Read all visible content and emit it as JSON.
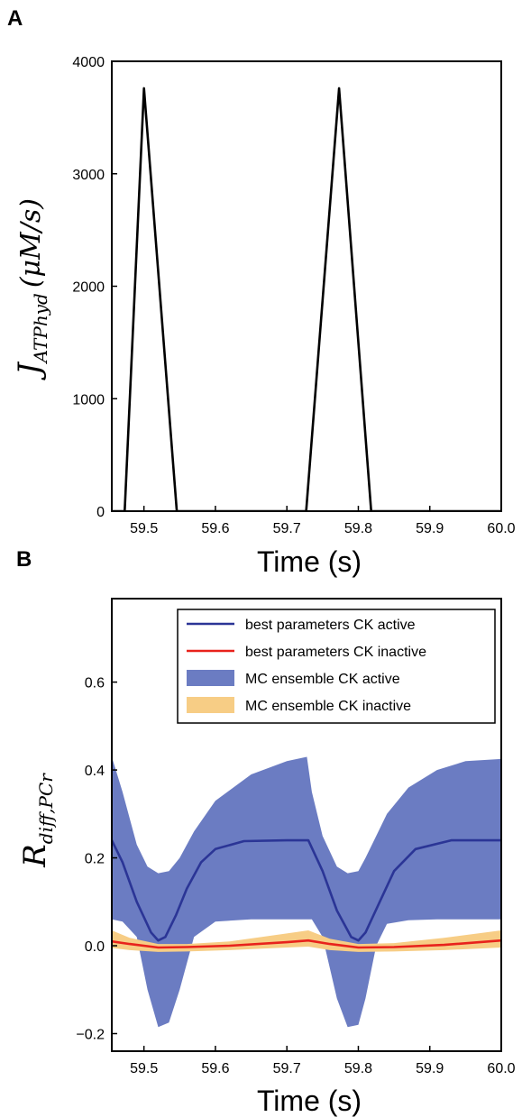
{
  "chart_data": [
    {
      "panel": "A",
      "type": "line",
      "xlabel": "Time (s)",
      "ylabel": "J_ATPhyd (μM/s)",
      "ylabel_main": "J",
      "ylabel_sub": "ATPhyd",
      "ylabel_unit": "(μM/s)",
      "xlim": [
        59.455,
        60.0
      ],
      "ylim": [
        0,
        4000
      ],
      "xticks": [
        59.5,
        59.6,
        59.7,
        59.8,
        59.9,
        60.0
      ],
      "xtick_labels": [
        "59.5",
        "59.6",
        "59.7",
        "59.8",
        "59.9",
        "60.0"
      ],
      "yticks": [
        0,
        1000,
        2000,
        3000,
        4000
      ],
      "ytick_labels": [
        "0",
        "1000",
        "2000",
        "3000",
        "4000"
      ],
      "series": [
        {
          "color": "#000000",
          "x": [
            59.455,
            59.473,
            59.5,
            59.546,
            59.727,
            59.773,
            59.818,
            60.0
          ],
          "y": [
            0,
            0,
            3760,
            0,
            0,
            3760,
            0,
            0
          ]
        }
      ]
    },
    {
      "panel": "B",
      "type": "line",
      "xlabel": "Time (s)",
      "ylabel": "R_diff,PCr",
      "ylabel_main": "R",
      "ylabel_sub": "diff,PCr",
      "xlim": [
        59.455,
        60.0
      ],
      "ylim": [
        -0.24,
        0.79
      ],
      "xticks": [
        59.5,
        59.6,
        59.7,
        59.8,
        59.9,
        60.0
      ],
      "xtick_labels": [
        "59.5",
        "59.6",
        "59.7",
        "59.8",
        "59.9",
        "60.0"
      ],
      "yticks": [
        -0.2,
        0.0,
        0.2,
        0.4,
        0.6
      ],
      "ytick_labels": [
        "−0.2",
        "0.0",
        "0.2",
        "0.4",
        "0.6"
      ],
      "legend_position": "top-right",
      "legend": [
        {
          "label": "best parameters CK active",
          "kind": "line",
          "color": "#2b3596"
        },
        {
          "label": "best parameters CK inactive",
          "kind": "line",
          "color": "#e8221c"
        },
        {
          "label": "MC ensemble CK active",
          "kind": "band",
          "color": "#6b7cc2"
        },
        {
          "label": "MC ensemble CK inactive",
          "kind": "band",
          "color": "#f7cd85"
        }
      ],
      "series": [
        {
          "name": "best parameters CK active",
          "color": "#2b3596",
          "x": [
            59.455,
            59.47,
            59.49,
            59.51,
            59.52,
            59.53,
            59.545,
            59.56,
            59.58,
            59.6,
            59.64,
            59.7,
            59.73,
            59.75,
            59.77,
            59.79,
            59.8,
            59.81,
            59.83,
            59.85,
            59.88,
            59.93,
            60.0
          ],
          "y": [
            0.24,
            0.19,
            0.1,
            0.03,
            0.012,
            0.02,
            0.07,
            0.13,
            0.19,
            0.22,
            0.238,
            0.24,
            0.24,
            0.17,
            0.08,
            0.02,
            0.012,
            0.03,
            0.1,
            0.17,
            0.22,
            0.24,
            0.24
          ]
        },
        {
          "name": "best parameters CK inactive",
          "color": "#e8221c",
          "x": [
            59.455,
            59.48,
            59.52,
            59.56,
            59.62,
            59.7,
            59.73,
            59.76,
            59.8,
            59.85,
            59.92,
            60.0
          ],
          "y": [
            0.01,
            0.004,
            -0.004,
            -0.003,
            0.0,
            0.008,
            0.012,
            0.004,
            -0.004,
            -0.003,
            0.002,
            0.012
          ]
        },
        {
          "name": "MC ensemble CK active",
          "color": "#6b7cc2",
          "x": [
            59.455,
            59.47,
            59.49,
            59.505,
            59.52,
            59.535,
            59.55,
            59.57,
            59.6,
            59.65,
            59.7,
            59.728,
            59.735,
            59.75,
            59.77,
            59.785,
            59.8,
            59.81,
            59.825,
            59.84,
            59.87,
            59.91,
            59.95,
            60.0
          ],
          "upper": [
            0.43,
            0.35,
            0.23,
            0.18,
            0.165,
            0.17,
            0.2,
            0.26,
            0.33,
            0.39,
            0.42,
            0.43,
            0.35,
            0.25,
            0.18,
            0.165,
            0.17,
            0.2,
            0.25,
            0.3,
            0.36,
            0.4,
            0.42,
            0.425
          ],
          "lower": [
            0.06,
            0.055,
            0.02,
            -0.1,
            -0.185,
            -0.175,
            -0.1,
            0.02,
            0.055,
            0.06,
            0.06,
            0.06,
            0.06,
            0.02,
            -0.12,
            -0.185,
            -0.18,
            -0.12,
            0.0,
            0.05,
            0.058,
            0.06,
            0.06,
            0.06
          ]
        },
        {
          "name": "MC ensemble CK inactive",
          "color": "#f7cd85",
          "x": [
            59.455,
            59.48,
            59.52,
            59.56,
            59.62,
            59.7,
            59.73,
            59.76,
            59.8,
            59.85,
            59.92,
            60.0
          ],
          "upper": [
            0.035,
            0.018,
            0.004,
            0.004,
            0.01,
            0.028,
            0.035,
            0.016,
            0.004,
            0.006,
            0.018,
            0.035
          ],
          "lower": [
            -0.005,
            -0.01,
            -0.014,
            -0.013,
            -0.01,
            -0.004,
            -0.002,
            -0.01,
            -0.014,
            -0.013,
            -0.01,
            -0.004
          ]
        }
      ]
    }
  ]
}
